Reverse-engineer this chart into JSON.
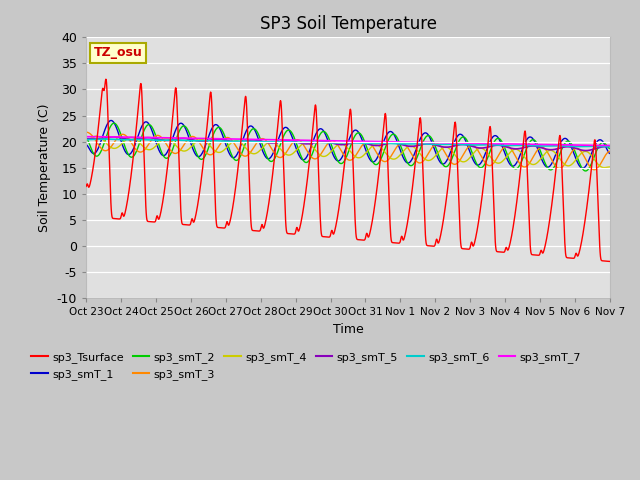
{
  "title": "SP3 Soil Temperature",
  "ylabel": "Soil Temperature (C)",
  "xlabel": "Time",
  "tz_label": "TZ_osu",
  "ylim": [
    -10,
    40
  ],
  "fig_bg_color": "#c8c8c8",
  "plot_bg_color": "#e0e0e0",
  "series_colors": {
    "sp3_Tsurface": "#ff0000",
    "sp3_smT_1": "#0000cc",
    "sp3_smT_2": "#00cc00",
    "sp3_smT_3": "#ff8800",
    "sp3_smT_4": "#cccc00",
    "sp3_smT_5": "#8800bb",
    "sp3_smT_6": "#00cccc",
    "sp3_smT_7": "#ff00ff"
  },
  "xtick_labels": [
    "Oct 23",
    "Oct 24",
    "Oct 25",
    "Oct 26",
    "Oct 27",
    "Oct 28",
    "Oct 29",
    "Oct 30",
    "Oct 31",
    "Nov 1",
    "Nov 2",
    "Nov 3",
    "Nov 4",
    "Nov 5",
    "Nov 6",
    "Nov 7"
  ],
  "n_points": 1440,
  "duration_days": 15
}
